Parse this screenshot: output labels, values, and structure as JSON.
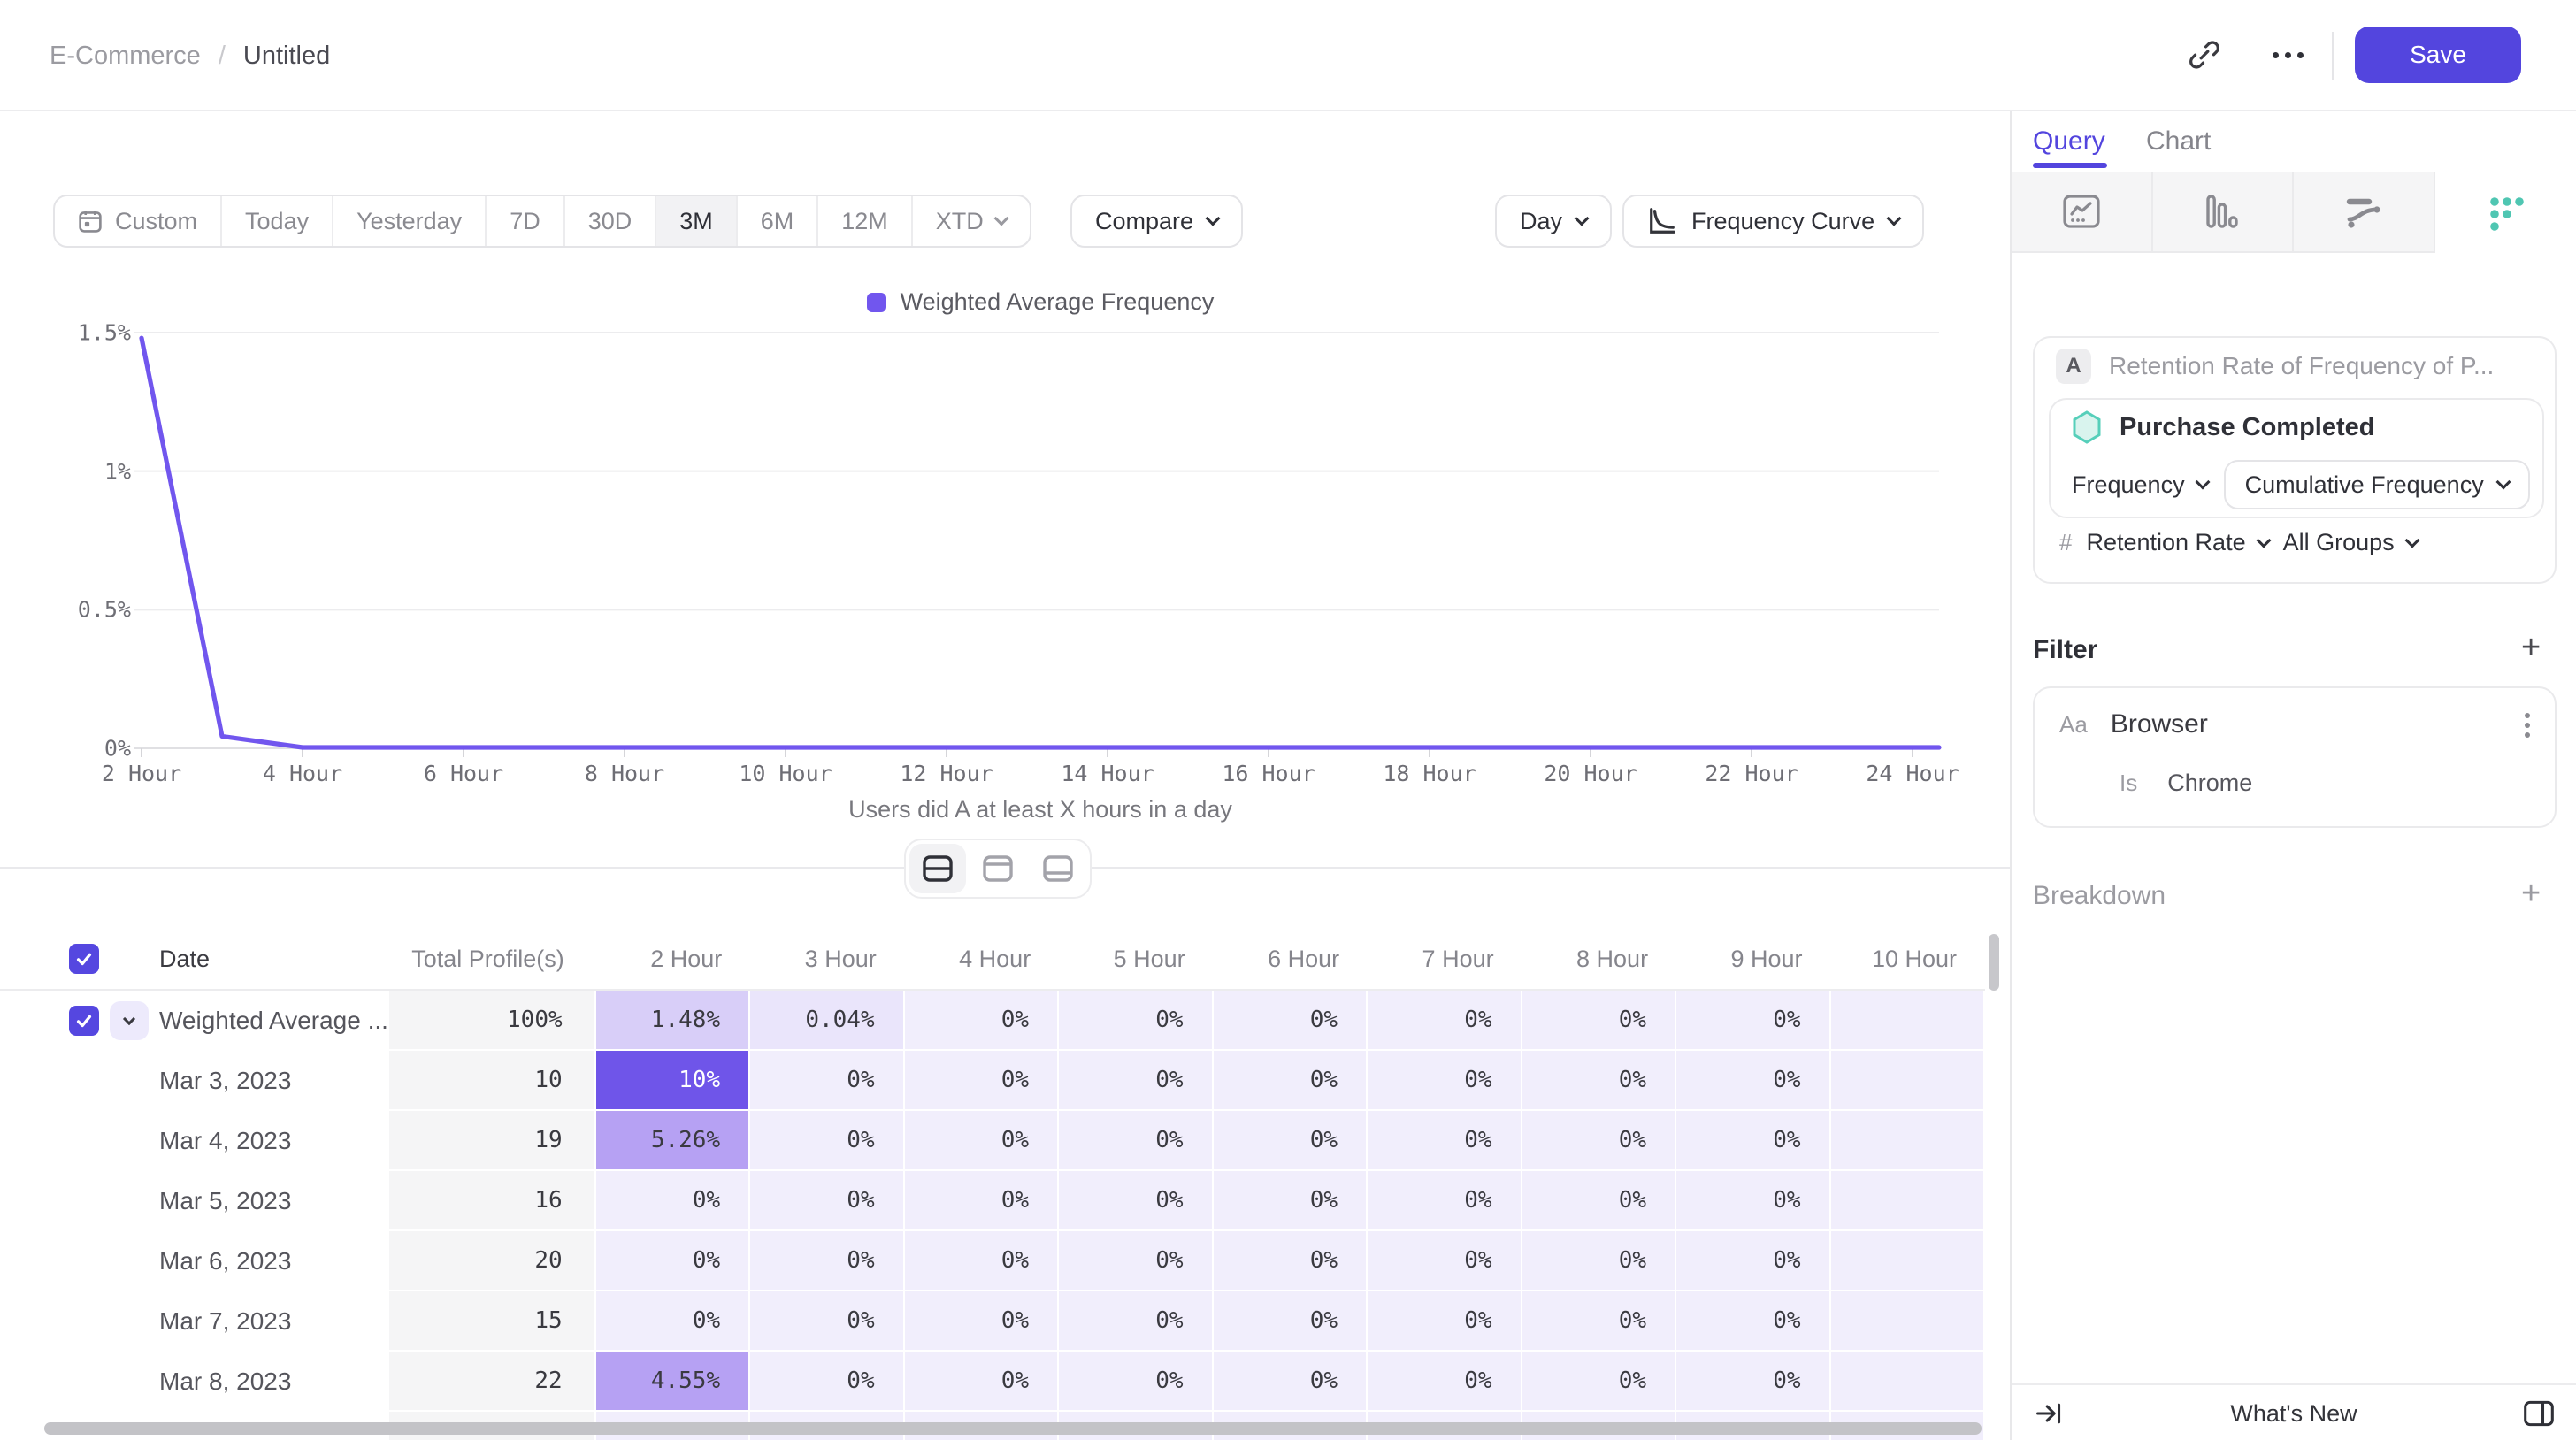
{
  "header": {
    "breadcrumb": {
      "project": "E-Commerce",
      "separator": "/",
      "title": "Untitled"
    },
    "save_label": "Save"
  },
  "toolbar": {
    "ranges": [
      {
        "label": "Custom"
      },
      {
        "label": "Today"
      },
      {
        "label": "Yesterday"
      },
      {
        "label": "7D"
      },
      {
        "label": "30D"
      },
      {
        "label": "3M"
      },
      {
        "label": "6M"
      },
      {
        "label": "12M"
      },
      {
        "label": "XTD"
      }
    ],
    "selected_range": "3M",
    "compare_label": "Compare",
    "granularity_label": "Day",
    "chart_type_label": "Frequency Curve"
  },
  "chart_data": {
    "type": "line",
    "legend": "Weighted Average Frequency",
    "x_hours": [
      2,
      3,
      4,
      5,
      6,
      7,
      8,
      9,
      10,
      11,
      12,
      13,
      14,
      15,
      16,
      17,
      18,
      19,
      20,
      21,
      22,
      23,
      24
    ],
    "values": [
      1.48,
      0.04,
      0,
      0,
      0,
      0,
      0,
      0,
      0,
      0,
      0,
      0,
      0,
      0,
      0,
      0,
      0,
      0,
      0,
      0,
      0,
      0,
      0
    ],
    "x_tick_labels": [
      "2 Hour",
      "4 Hour",
      "6 Hour",
      "8 Hour",
      "10 Hour",
      "12 Hour",
      "14 Hour",
      "16 Hour",
      "18 Hour",
      "20 Hour",
      "22 Hour",
      "24 Hour"
    ],
    "y_tick_labels": [
      "1.5%",
      "1%",
      "0.5%",
      "0%"
    ],
    "ylim": [
      0,
      1.5
    ],
    "xlabel": "Users did A at least X hours in a day",
    "grid": true,
    "legend_position": "top-center",
    "line_color": "#7156ee"
  },
  "table": {
    "columns": [
      "Date",
      "Total Profile(s)",
      "2 Hour",
      "3 Hour",
      "4 Hour",
      "5 Hour",
      "6 Hour",
      "7 Hour",
      "8 Hour",
      "9 Hour",
      "10 Hour"
    ],
    "rows": [
      {
        "label": "Weighted Average ...",
        "total": "100%",
        "lead": true,
        "cells": [
          [
            "1.48%",
            "light"
          ],
          [
            "0.04%",
            "xlight"
          ],
          [
            "0%",
            ""
          ],
          [
            "0%",
            ""
          ],
          [
            "0%",
            ""
          ],
          [
            "0%",
            ""
          ],
          [
            "0%",
            ""
          ],
          [
            "0%",
            ""
          ],
          [
            "",
            ""
          ]
        ]
      },
      {
        "label": "Mar 3, 2023",
        "total": "10",
        "cells": [
          [
            "10%",
            "dark"
          ],
          [
            "0%",
            ""
          ],
          [
            "0%",
            ""
          ],
          [
            "0%",
            ""
          ],
          [
            "0%",
            ""
          ],
          [
            "0%",
            ""
          ],
          [
            "0%",
            ""
          ],
          [
            "0%",
            ""
          ],
          [
            "",
            ""
          ]
        ]
      },
      {
        "label": "Mar 4, 2023",
        "total": "19",
        "cells": [
          [
            "5.26%",
            "mid"
          ],
          [
            "0%",
            ""
          ],
          [
            "0%",
            ""
          ],
          [
            "0%",
            ""
          ],
          [
            "0%",
            ""
          ],
          [
            "0%",
            ""
          ],
          [
            "0%",
            ""
          ],
          [
            "0%",
            ""
          ],
          [
            "",
            ""
          ]
        ]
      },
      {
        "label": "Mar 5, 2023",
        "total": "16",
        "cells": [
          [
            "0%",
            ""
          ],
          [
            "0%",
            ""
          ],
          [
            "0%",
            ""
          ],
          [
            "0%",
            ""
          ],
          [
            "0%",
            ""
          ],
          [
            "0%",
            ""
          ],
          [
            "0%",
            ""
          ],
          [
            "0%",
            ""
          ],
          [
            "",
            ""
          ]
        ]
      },
      {
        "label": "Mar 6, 2023",
        "total": "20",
        "cells": [
          [
            "0%",
            ""
          ],
          [
            "0%",
            ""
          ],
          [
            "0%",
            ""
          ],
          [
            "0%",
            ""
          ],
          [
            "0%",
            ""
          ],
          [
            "0%",
            ""
          ],
          [
            "0%",
            ""
          ],
          [
            "0%",
            ""
          ],
          [
            "",
            ""
          ]
        ]
      },
      {
        "label": "Mar 7, 2023",
        "total": "15",
        "cells": [
          [
            "0%",
            ""
          ],
          [
            "0%",
            ""
          ],
          [
            "0%",
            ""
          ],
          [
            "0%",
            ""
          ],
          [
            "0%",
            ""
          ],
          [
            "0%",
            ""
          ],
          [
            "0%",
            ""
          ],
          [
            "0%",
            ""
          ],
          [
            "",
            ""
          ]
        ]
      },
      {
        "label": "Mar 8, 2023",
        "total": "22",
        "cells": [
          [
            "4.55%",
            "mid"
          ],
          [
            "0%",
            ""
          ],
          [
            "0%",
            ""
          ],
          [
            "0%",
            ""
          ],
          [
            "0%",
            ""
          ],
          [
            "0%",
            ""
          ],
          [
            "0%",
            ""
          ],
          [
            "0%",
            ""
          ],
          [
            "",
            ""
          ]
        ]
      },
      {
        "label": "",
        "total": "",
        "cells": [
          [
            "",
            ""
          ],
          [
            "",
            ""
          ],
          [
            "",
            ""
          ],
          [
            "",
            ""
          ],
          [
            "",
            ""
          ],
          [
            "",
            ""
          ],
          [
            "",
            ""
          ],
          [
            "",
            ""
          ],
          [
            "",
            ""
          ]
        ]
      }
    ]
  },
  "sidebar": {
    "tabs": {
      "query": "Query",
      "chart": "Chart"
    },
    "query": {
      "series_letter": "A",
      "series_title": "Retention Rate of Frequency of P...",
      "event_name": "Purchase Completed",
      "frequency_label": "Frequency",
      "frequency_value": "Cumulative Frequency",
      "measure_prefix": "#",
      "measure": "Retention Rate",
      "groups": "All Groups"
    },
    "filter": {
      "heading": "Filter",
      "property_type": "Aa",
      "property": "Browser",
      "operator": "Is",
      "value": "Chrome"
    },
    "breakdown": {
      "heading": "Breakdown"
    },
    "footer": {
      "whats_new": "What's New"
    }
  },
  "colors": {
    "accent": "#5345de",
    "line": "#7156ee",
    "teal": "#4fc6b2",
    "cell_dark": "#6f55e9",
    "cell_mid": "#b6a1f3",
    "cell_light": "#d8cef8",
    "cell_xlight": "#eae5fb",
    "cell_base": "#f1eefc"
  }
}
